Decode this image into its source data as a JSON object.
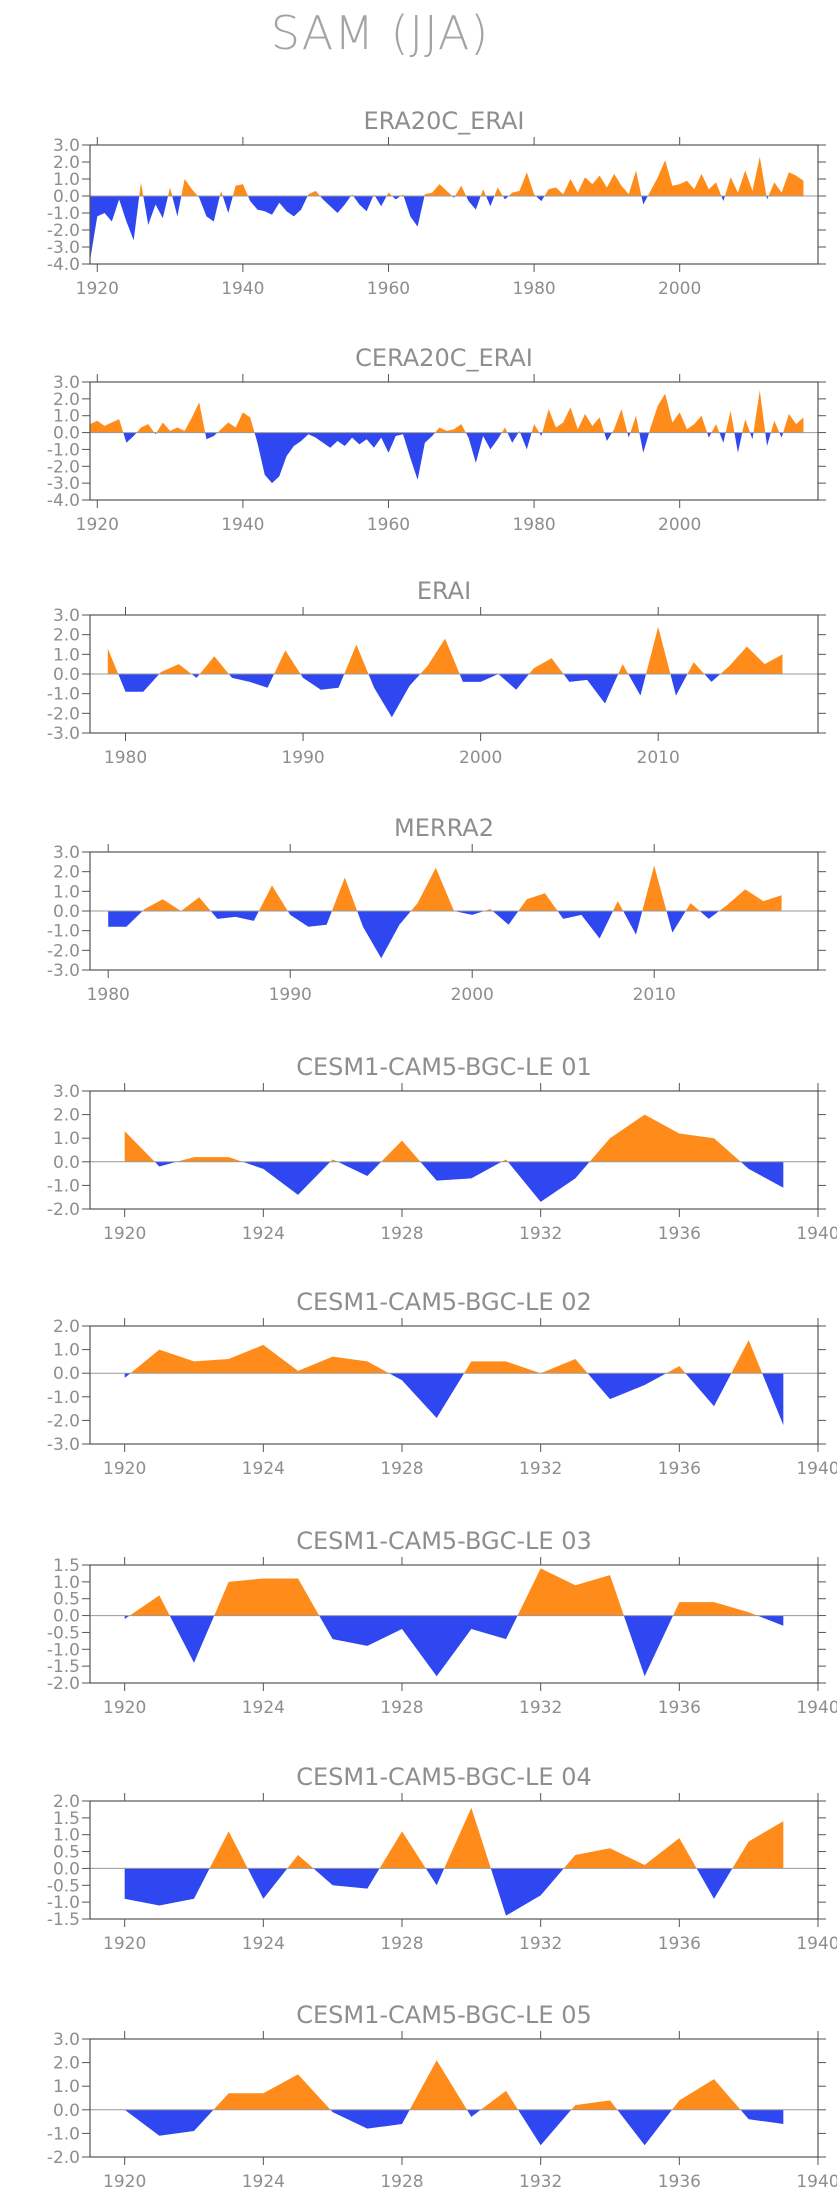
{
  "title": "SAM (JJA)",
  "colors": {
    "positive": "#ff8c1a",
    "negative": "#2f47f0",
    "axis": "#555555",
    "text": "#8e8e8e"
  },
  "chart_data": [
    {
      "type": "area",
      "title": "ERA20C_ERAI",
      "xlim": [
        1919,
        2019
      ],
      "ylim": [
        -4.0,
        3.0
      ],
      "xticks": [
        1920,
        1940,
        1960,
        1980,
        2000
      ],
      "yticks": [
        3.0,
        2.0,
        1.0,
        0.0,
        -1.0,
        -2.0,
        -3.0,
        -4.0
      ],
      "x": [
        1919,
        1920,
        1921,
        1922,
        1923,
        1924,
        1925,
        1926,
        1927,
        1928,
        1929,
        1930,
        1931,
        1932,
        1933,
        1934,
        1935,
        1936,
        1937,
        1938,
        1939,
        1940,
        1941,
        1942,
        1943,
        1944,
        1945,
        1946,
        1947,
        1948,
        1949,
        1950,
        1951,
        1952,
        1953,
        1954,
        1955,
        1956,
        1957,
        1958,
        1959,
        1960,
        1961,
        1962,
        1963,
        1964,
        1965,
        1966,
        1967,
        1968,
        1969,
        1970,
        1971,
        1972,
        1973,
        1974,
        1975,
        1976,
        1977,
        1978,
        1979,
        1980,
        1981,
        1982,
        1983,
        1984,
        1985,
        1986,
        1987,
        1988,
        1989,
        1990,
        1991,
        1992,
        1993,
        1994,
        1995,
        1996,
        1997,
        1998,
        1999,
        2000,
        2001,
        2002,
        2003,
        2004,
        2005,
        2006,
        2007,
        2008,
        2009,
        2010,
        2011,
        2012,
        2013,
        2014,
        2015,
        2016,
        2017
      ],
      "values": [
        -3.8,
        -1.2,
        -1.0,
        -1.5,
        -0.2,
        -1.5,
        -2.6,
        0.8,
        -1.7,
        -0.5,
        -1.3,
        0.5,
        -1.2,
        1.0,
        0.4,
        -0.1,
        -1.2,
        -1.5,
        0.3,
        -1.0,
        0.6,
        0.7,
        -0.3,
        -0.8,
        -0.9,
        -1.1,
        -0.4,
        -0.9,
        -1.2,
        -0.8,
        0.1,
        0.3,
        -0.2,
        -0.6,
        -1.0,
        -0.5,
        0.1,
        -0.5,
        -0.9,
        0.1,
        -0.6,
        0.2,
        -0.2,
        0.1,
        -1.2,
        -1.8,
        0.1,
        0.2,
        0.7,
        0.3,
        -0.1,
        0.6,
        -0.3,
        -0.8,
        0.4,
        -0.6,
        0.5,
        -0.2,
        0.2,
        0.3,
        1.4,
        0.1,
        -0.3,
        0.4,
        0.5,
        0.1,
        1.0,
        0.2,
        1.1,
        0.7,
        1.2,
        0.5,
        1.3,
        0.6,
        0.1,
        1.5,
        -0.5,
        0.3,
        1.1,
        2.1,
        0.6,
        0.7,
        0.9,
        0.4,
        1.3,
        0.4,
        0.8,
        -0.3,
        1.1,
        0.2,
        1.5,
        0.3,
        2.3,
        -0.2,
        0.8,
        0.2,
        1.4,
        1.2,
        0.9
      ]
    },
    {
      "type": "area",
      "title": "CERA20C_ERAI",
      "xlim": [
        1919,
        2019
      ],
      "ylim": [
        -4.0,
        3.0
      ],
      "xticks": [
        1920,
        1940,
        1960,
        1980,
        2000
      ],
      "yticks": [
        3.0,
        2.0,
        1.0,
        0.0,
        -1.0,
        -2.0,
        -3.0,
        -4.0
      ],
      "x": [
        1919,
        1920,
        1921,
        1922,
        1923,
        1924,
        1925,
        1926,
        1927,
        1928,
        1929,
        1930,
        1931,
        1932,
        1933,
        1934,
        1935,
        1936,
        1937,
        1938,
        1939,
        1940,
        1941,
        1942,
        1943,
        1944,
        1945,
        1946,
        1947,
        1948,
        1949,
        1950,
        1951,
        1952,
        1953,
        1954,
        1955,
        1956,
        1957,
        1958,
        1959,
        1960,
        1961,
        1962,
        1963,
        1964,
        1965,
        1966,
        1967,
        1968,
        1969,
        1970,
        1971,
        1972,
        1973,
        1974,
        1975,
        1976,
        1977,
        1978,
        1979,
        1980,
        1981,
        1982,
        1983,
        1984,
        1985,
        1986,
        1987,
        1988,
        1989,
        1990,
        1991,
        1992,
        1993,
        1994,
        1995,
        1996,
        1997,
        1998,
        1999,
        2000,
        2001,
        2002,
        2003,
        2004,
        2005,
        2006,
        2007,
        2008,
        2009,
        2010,
        2011,
        2012,
        2013,
        2014,
        2015,
        2016,
        2017
      ],
      "values": [
        0.5,
        0.7,
        0.4,
        0.6,
        0.8,
        -0.6,
        -0.2,
        0.3,
        0.5,
        -0.1,
        0.6,
        0.1,
        0.3,
        0.1,
        0.9,
        1.8,
        -0.4,
        -0.2,
        0.2,
        0.6,
        0.3,
        1.2,
        0.9,
        -0.6,
        -2.5,
        -3.0,
        -2.6,
        -1.4,
        -0.8,
        -0.5,
        -0.1,
        -0.3,
        -0.6,
        -0.9,
        -0.5,
        -0.8,
        -0.3,
        -0.7,
        -0.4,
        -0.9,
        -0.3,
        -1.2,
        -0.2,
        -0.1,
        -1.5,
        -2.8,
        -0.6,
        -0.2,
        0.3,
        0.1,
        0.2,
        0.5,
        -0.3,
        -1.8,
        -0.2,
        -1.0,
        -0.4,
        0.3,
        -0.6,
        0.1,
        -1.0,
        0.5,
        -0.2,
        1.4,
        0.3,
        0.6,
        1.5,
        0.2,
        1.1,
        0.4,
        0.9,
        -0.5,
        0.2,
        1.4,
        -0.3,
        1.0,
        -1.2,
        0.3,
        1.6,
        2.3,
        0.6,
        1.2,
        0.2,
        0.5,
        1.0,
        -0.3,
        0.5,
        -0.6,
        1.3,
        -1.2,
        0.8,
        -0.4,
        2.5,
        -0.8,
        0.7,
        -0.3,
        1.1,
        0.5,
        0.9
      ]
    },
    {
      "type": "area",
      "title": "ERAI",
      "xlim": [
        1978,
        2019
      ],
      "ylim": [
        -3.0,
        3.0
      ],
      "xticks": [
        1980,
        1990,
        2000,
        2010
      ],
      "yticks": [
        3.0,
        2.0,
        1.0,
        0.0,
        -1.0,
        -2.0,
        -3.0
      ],
      "x": [
        1979,
        1980,
        1981,
        1982,
        1983,
        1984,
        1985,
        1986,
        1987,
        1988,
        1989,
        1990,
        1991,
        1992,
        1993,
        1994,
        1995,
        1996,
        1997,
        1998,
        1999,
        2000,
        2001,
        2002,
        2003,
        2004,
        2005,
        2006,
        2007,
        2008,
        2009,
        2010,
        2011,
        2012,
        2013,
        2014,
        2015,
        2016,
        2017
      ],
      "values": [
        1.3,
        -0.9,
        -0.9,
        0.1,
        0.5,
        -0.2,
        0.9,
        -0.2,
        -0.4,
        -0.7,
        1.2,
        -0.2,
        -0.8,
        -0.7,
        1.5,
        -0.7,
        -2.2,
        -0.6,
        0.4,
        1.8,
        -0.4,
        -0.4,
        0.0,
        -0.8,
        0.3,
        0.8,
        -0.4,
        -0.3,
        -1.5,
        0.5,
        -1.1,
        2.4,
        -1.1,
        0.6,
        -0.4,
        0.4,
        1.4,
        0.5,
        1.0
      ]
    },
    {
      "type": "area",
      "title": "MERRA2",
      "xlim": [
        1979,
        2019
      ],
      "ylim": [
        -3.0,
        3.0
      ],
      "xticks": [
        1980,
        1990,
        2000,
        2010
      ],
      "yticks": [
        3.0,
        2.0,
        1.0,
        0.0,
        -1.0,
        -2.0,
        -3.0
      ],
      "x": [
        1980,
        1981,
        1982,
        1983,
        1984,
        1985,
        1986,
        1987,
        1988,
        1989,
        1990,
        1991,
        1992,
        1993,
        1994,
        1995,
        1996,
        1997,
        1998,
        1999,
        2000,
        2001,
        2002,
        2003,
        2004,
        2005,
        2006,
        2007,
        2008,
        2009,
        2010,
        2011,
        2012,
        2013,
        2014,
        2015,
        2016,
        2017
      ],
      "values": [
        -0.8,
        -0.8,
        0.1,
        0.6,
        0.0,
        0.7,
        -0.4,
        -0.3,
        -0.5,
        1.3,
        -0.2,
        -0.8,
        -0.7,
        1.7,
        -0.8,
        -2.4,
        -0.7,
        0.4,
        2.2,
        0.0,
        -0.2,
        0.1,
        -0.7,
        0.6,
        0.9,
        -0.4,
        -0.2,
        -1.4,
        0.5,
        -1.2,
        2.3,
        -1.1,
        0.4,
        -0.4,
        0.3,
        1.1,
        0.5,
        0.8
      ]
    },
    {
      "type": "area",
      "title": "CESM1-CAM5-BGC-LE 01",
      "xlim": [
        1919,
        1940
      ],
      "ylim": [
        -2.0,
        3.0
      ],
      "xticks": [
        1920,
        1924,
        1928,
        1932,
        1936,
        1940
      ],
      "yticks": [
        3.0,
        2.0,
        1.0,
        0.0,
        -1.0,
        -2.0
      ],
      "x": [
        1920,
        1921,
        1922,
        1923,
        1924,
        1925,
        1926,
        1927,
        1928,
        1929,
        1930,
        1931,
        1932,
        1933,
        1934,
        1935,
        1936,
        1937,
        1938,
        1939
      ],
      "values": [
        1.3,
        -0.2,
        0.2,
        0.2,
        -0.3,
        -1.4,
        0.1,
        -0.6,
        0.9,
        -0.8,
        -0.7,
        0.1,
        -1.7,
        -0.7,
        1.0,
        2.0,
        1.2,
        1.0,
        -0.3,
        -1.1
      ]
    },
    {
      "type": "area",
      "title": "CESM1-CAM5-BGC-LE 02",
      "xlim": [
        1919,
        1940
      ],
      "ylim": [
        -3.0,
        2.0
      ],
      "xticks": [
        1920,
        1924,
        1928,
        1932,
        1936,
        1940
      ],
      "yticks": [
        2.0,
        1.0,
        0.0,
        -1.0,
        -2.0,
        -3.0
      ],
      "x": [
        1920,
        1921,
        1922,
        1923,
        1924,
        1925,
        1926,
        1927,
        1928,
        1929,
        1930,
        1931,
        1932,
        1933,
        1934,
        1935,
        1936,
        1937,
        1938,
        1939
      ],
      "values": [
        -0.2,
        1.0,
        0.5,
        0.6,
        1.2,
        0.1,
        0.7,
        0.5,
        -0.3,
        -1.9,
        0.5,
        0.5,
        0.0,
        0.6,
        -1.1,
        -0.5,
        0.3,
        -1.4,
        1.4,
        -2.2
      ]
    },
    {
      "type": "area",
      "title": "CESM1-CAM5-BGC-LE 03",
      "xlim": [
        1919,
        1940
      ],
      "ylim": [
        -2.0,
        1.5
      ],
      "xticks": [
        1920,
        1924,
        1928,
        1932,
        1936,
        1940
      ],
      "yticks": [
        1.5,
        1.0,
        0.5,
        0.0,
        -0.5,
        -1.0,
        -1.5,
        -2.0
      ],
      "x": [
        1920,
        1921,
        1922,
        1923,
        1924,
        1925,
        1926,
        1927,
        1928,
        1929,
        1930,
        1931,
        1932,
        1933,
        1934,
        1935,
        1936,
        1937,
        1938,
        1939
      ],
      "values": [
        -0.1,
        0.6,
        -1.4,
        1.0,
        1.1,
        1.1,
        -0.7,
        -0.9,
        -0.4,
        -1.8,
        -0.4,
        -0.7,
        1.4,
        0.9,
        1.2,
        -1.8,
        0.4,
        0.4,
        0.1,
        -0.3
      ]
    },
    {
      "type": "area",
      "title": "CESM1-CAM5-BGC-LE 04",
      "xlim": [
        1919,
        1940
      ],
      "ylim": [
        -1.5,
        2.0
      ],
      "xticks": [
        1920,
        1924,
        1928,
        1932,
        1936,
        1940
      ],
      "yticks": [
        2.0,
        1.5,
        1.0,
        0.5,
        0.0,
        -0.5,
        -1.0,
        -1.5
      ],
      "x": [
        1920,
        1921,
        1922,
        1923,
        1924,
        1925,
        1926,
        1927,
        1928,
        1929,
        1930,
        1931,
        1932,
        1933,
        1934,
        1935,
        1936,
        1937,
        1938,
        1939
      ],
      "values": [
        -0.9,
        -1.1,
        -0.9,
        1.1,
        -0.9,
        0.4,
        -0.5,
        -0.6,
        1.1,
        -0.5,
        1.8,
        -1.4,
        -0.8,
        0.4,
        0.6,
        0.1,
        0.9,
        -0.9,
        0.8,
        1.4
      ]
    },
    {
      "type": "area",
      "title": "CESM1-CAM5-BGC-LE 05",
      "xlim": [
        1919,
        1940
      ],
      "ylim": [
        -2.0,
        3.0
      ],
      "xticks": [
        1920,
        1924,
        1928,
        1932,
        1936,
        1940
      ],
      "yticks": [
        3.0,
        2.0,
        1.0,
        0.0,
        -1.0,
        -2.0
      ],
      "x": [
        1920,
        1921,
        1922,
        1923,
        1924,
        1925,
        1926,
        1927,
        1928,
        1929,
        1930,
        1931,
        1932,
        1933,
        1934,
        1935,
        1936,
        1937,
        1938,
        1939
      ],
      "values": [
        0.0,
        -1.1,
        -0.9,
        0.7,
        0.7,
        1.5,
        -0.1,
        -0.8,
        -0.6,
        2.1,
        -0.3,
        0.8,
        -1.5,
        0.2,
        0.4,
        -1.5,
        0.4,
        1.3,
        -0.4,
        -0.6
      ]
    }
  ]
}
